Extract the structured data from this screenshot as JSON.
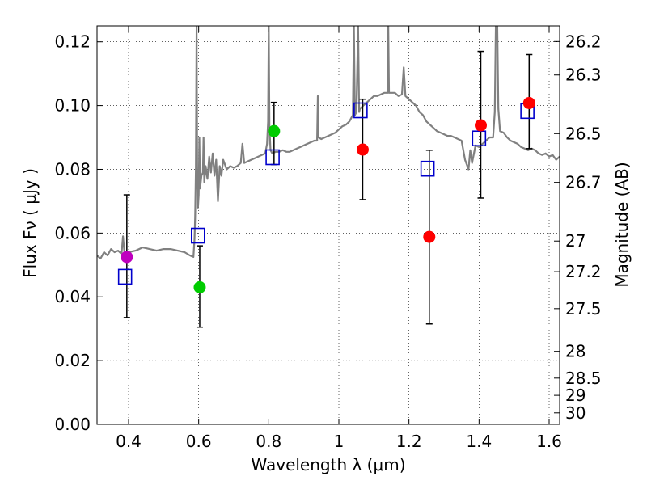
{
  "chart_data": {
    "type": "scatter",
    "xlabel": "Wavelength  λ (μm)",
    "ylabel": "Flux  Fν  ( μJy )",
    "y2label": "Magnitude (AB)",
    "xlim": [
      0.31,
      1.63
    ],
    "ylim": [
      0.0,
      0.125
    ],
    "grid": true,
    "x_ticks": [
      0.4,
      0.6,
      0.8,
      1.0,
      1.2,
      1.4,
      1.6
    ],
    "x_tick_labels": [
      "0.4",
      "0.6",
      "0.8",
      "1",
      "1.2",
      "1.4",
      "1.6"
    ],
    "y_ticks": [
      0.0,
      0.02,
      0.04,
      0.06,
      0.08,
      0.1,
      0.12
    ],
    "y_tick_labels": [
      "0.00",
      "0.02",
      "0.04",
      "0.06",
      "0.08",
      "0.10",
      "0.12"
    ],
    "mag_ticks": [
      {
        "label": "26.2",
        "flux": 0.1201
      },
      {
        "label": "26.3",
        "flux": 0.1096
      },
      {
        "label": "26.5",
        "flux": 0.0912
      },
      {
        "label": "26.7",
        "flux": 0.0759
      },
      {
        "label": "27",
        "flux": 0.0575
      },
      {
        "label": "27.2",
        "flux": 0.0479
      },
      {
        "label": "27.5",
        "flux": 0.0363
      },
      {
        "label": "28",
        "flux": 0.0229
      },
      {
        "label": "28.5",
        "flux": 0.0145
      },
      {
        "label": "29",
        "flux": 0.0091
      },
      {
        "label": "30",
        "flux": 0.0036
      }
    ],
    "colors": {
      "spectrum": "#808080",
      "model": "#0000cc",
      "errorbar": "#000000"
    },
    "observed": [
      {
        "x": 0.395,
        "y": 0.0525,
        "err": [
          0.0335,
          0.072
        ],
        "color": "#bf00bf"
      },
      {
        "x": 0.603,
        "y": 0.043,
        "err": [
          0.0305,
          0.056
        ],
        "color": "#00cc00"
      },
      {
        "x": 0.815,
        "y": 0.092,
        "err": [
          0.0815,
          0.101
        ],
        "color": "#00cc00"
      },
      {
        "x": 1.068,
        "y": 0.0862,
        "err": [
          0.0705,
          0.102
        ],
        "color": "#ff0000"
      },
      {
        "x": 1.258,
        "y": 0.0588,
        "err": [
          0.0315,
          0.086
        ],
        "color": "#ff0000"
      },
      {
        "x": 1.405,
        "y": 0.0938,
        "err": [
          0.071,
          0.117
        ],
        "color": "#ff0000"
      },
      {
        "x": 1.543,
        "y": 0.1008,
        "err": [
          0.0865,
          0.116
        ],
        "color": "#ff0000"
      }
    ],
    "model_points": [
      {
        "x": 0.39,
        "y": 0.0463
      },
      {
        "x": 0.598,
        "y": 0.0592
      },
      {
        "x": 0.811,
        "y": 0.0838
      },
      {
        "x": 1.062,
        "y": 0.0985
      },
      {
        "x": 1.253,
        "y": 0.0802
      },
      {
        "x": 1.4,
        "y": 0.0897
      },
      {
        "x": 1.538,
        "y": 0.0983
      }
    ],
    "spectrum": [
      [
        0.31,
        0.053
      ],
      [
        0.32,
        0.052
      ],
      [
        0.33,
        0.054
      ],
      [
        0.34,
        0.053
      ],
      [
        0.35,
        0.055
      ],
      [
        0.36,
        0.054
      ],
      [
        0.37,
        0.0545
      ],
      [
        0.38,
        0.0535
      ],
      [
        0.384,
        0.059
      ],
      [
        0.388,
        0.054
      ],
      [
        0.4,
        0.054
      ],
      [
        0.42,
        0.0545
      ],
      [
        0.44,
        0.0555
      ],
      [
        0.46,
        0.055
      ],
      [
        0.48,
        0.0545
      ],
      [
        0.5,
        0.055
      ],
      [
        0.52,
        0.055
      ],
      [
        0.54,
        0.0545
      ],
      [
        0.56,
        0.054
      ],
      [
        0.575,
        0.053
      ],
      [
        0.585,
        0.0525
      ],
      [
        0.588,
        0.058
      ],
      [
        0.59,
        0.065
      ],
      [
        0.592,
        0.08
      ],
      [
        0.594,
        0.125
      ],
      [
        0.596,
        0.075
      ],
      [
        0.598,
        0.068
      ],
      [
        0.6,
        0.072
      ],
      [
        0.602,
        0.09
      ],
      [
        0.604,
        0.074
      ],
      [
        0.608,
        0.078
      ],
      [
        0.612,
        0.079
      ],
      [
        0.614,
        0.09
      ],
      [
        0.616,
        0.076
      ],
      [
        0.62,
        0.081
      ],
      [
        0.625,
        0.077
      ],
      [
        0.63,
        0.084
      ],
      [
        0.635,
        0.079
      ],
      [
        0.64,
        0.085
      ],
      [
        0.645,
        0.078
      ],
      [
        0.65,
        0.083
      ],
      [
        0.655,
        0.07
      ],
      [
        0.66,
        0.081
      ],
      [
        0.665,
        0.078
      ],
      [
        0.67,
        0.083
      ],
      [
        0.68,
        0.08
      ],
      [
        0.69,
        0.081
      ],
      [
        0.7,
        0.0805
      ],
      [
        0.71,
        0.081
      ],
      [
        0.72,
        0.082
      ],
      [
        0.725,
        0.088
      ],
      [
        0.73,
        0.082
      ],
      [
        0.74,
        0.0825
      ],
      [
        0.75,
        0.083
      ],
      [
        0.76,
        0.0835
      ],
      [
        0.77,
        0.084
      ],
      [
        0.78,
        0.0845
      ],
      [
        0.79,
        0.085
      ],
      [
        0.795,
        0.088
      ],
      [
        0.798,
        0.095
      ],
      [
        0.8,
        0.125
      ],
      [
        0.802,
        0.093
      ],
      [
        0.805,
        0.086
      ],
      [
        0.81,
        0.085
      ],
      [
        0.82,
        0.0855
      ],
      [
        0.83,
        0.0855
      ],
      [
        0.84,
        0.086
      ],
      [
        0.85,
        0.0855
      ],
      [
        0.86,
        0.0855
      ],
      [
        0.87,
        0.086
      ],
      [
        0.88,
        0.0865
      ],
      [
        0.89,
        0.087
      ],
      [
        0.9,
        0.0875
      ],
      [
        0.91,
        0.088
      ],
      [
        0.92,
        0.0885
      ],
      [
        0.93,
        0.089
      ],
      [
        0.938,
        0.089
      ],
      [
        0.94,
        0.103
      ],
      [
        0.942,
        0.09
      ],
      [
        0.95,
        0.0895
      ],
      [
        0.96,
        0.09
      ],
      [
        0.97,
        0.0905
      ],
      [
        0.98,
        0.091
      ],
      [
        0.99,
        0.0915
      ],
      [
        1.0,
        0.0925
      ],
      [
        1.01,
        0.0935
      ],
      [
        1.02,
        0.094
      ],
      [
        1.03,
        0.095
      ],
      [
        1.04,
        0.097
      ],
      [
        1.043,
        0.125
      ],
      [
        1.046,
        0.097
      ],
      [
        1.05,
        0.098
      ],
      [
        1.055,
        0.125
      ],
      [
        1.058,
        0.098
      ],
      [
        1.06,
        0.099
      ],
      [
        1.065,
        0.0995
      ],
      [
        1.07,
        0.1
      ],
      [
        1.08,
        0.101
      ],
      [
        1.09,
        0.102
      ],
      [
        1.1,
        0.103
      ],
      [
        1.11,
        0.103
      ],
      [
        1.12,
        0.1035
      ],
      [
        1.13,
        0.104
      ],
      [
        1.14,
        0.104
      ],
      [
        1.141,
        0.125
      ],
      [
        1.143,
        0.104
      ],
      [
        1.15,
        0.104
      ],
      [
        1.16,
        0.104
      ],
      [
        1.17,
        0.103
      ],
      [
        1.18,
        0.1035
      ],
      [
        1.185,
        0.112
      ],
      [
        1.19,
        0.103
      ],
      [
        1.2,
        0.102
      ],
      [
        1.21,
        0.101
      ],
      [
        1.22,
        0.1
      ],
      [
        1.23,
        0.098
      ],
      [
        1.24,
        0.097
      ],
      [
        1.25,
        0.095
      ],
      [
        1.26,
        0.094
      ],
      [
        1.27,
        0.093
      ],
      [
        1.28,
        0.092
      ],
      [
        1.29,
        0.0915
      ],
      [
        1.3,
        0.091
      ],
      [
        1.31,
        0.0905
      ],
      [
        1.32,
        0.0905
      ],
      [
        1.33,
        0.09
      ],
      [
        1.34,
        0.0895
      ],
      [
        1.35,
        0.089
      ],
      [
        1.36,
        0.083
      ],
      [
        1.37,
        0.08
      ],
      [
        1.375,
        0.086
      ],
      [
        1.38,
        0.082
      ],
      [
        1.39,
        0.0875
      ],
      [
        1.4,
        0.087
      ],
      [
        1.41,
        0.088
      ],
      [
        1.42,
        0.089
      ],
      [
        1.43,
        0.09
      ],
      [
        1.44,
        0.09
      ],
      [
        1.445,
        0.098
      ],
      [
        1.448,
        0.125
      ],
      [
        1.452,
        0.125
      ],
      [
        1.455,
        0.099
      ],
      [
        1.46,
        0.092
      ],
      [
        1.47,
        0.0915
      ],
      [
        1.48,
        0.09
      ],
      [
        1.49,
        0.089
      ],
      [
        1.5,
        0.0885
      ],
      [
        1.51,
        0.088
      ],
      [
        1.52,
        0.087
      ],
      [
        1.53,
        0.0865
      ],
      [
        1.54,
        0.086
      ],
      [
        1.55,
        0.0865
      ],
      [
        1.56,
        0.086
      ],
      [
        1.57,
        0.085
      ],
      [
        1.58,
        0.0845
      ],
      [
        1.59,
        0.085
      ],
      [
        1.6,
        0.084
      ],
      [
        1.61,
        0.0845
      ],
      [
        1.62,
        0.083
      ],
      [
        1.63,
        0.084
      ]
    ]
  }
}
